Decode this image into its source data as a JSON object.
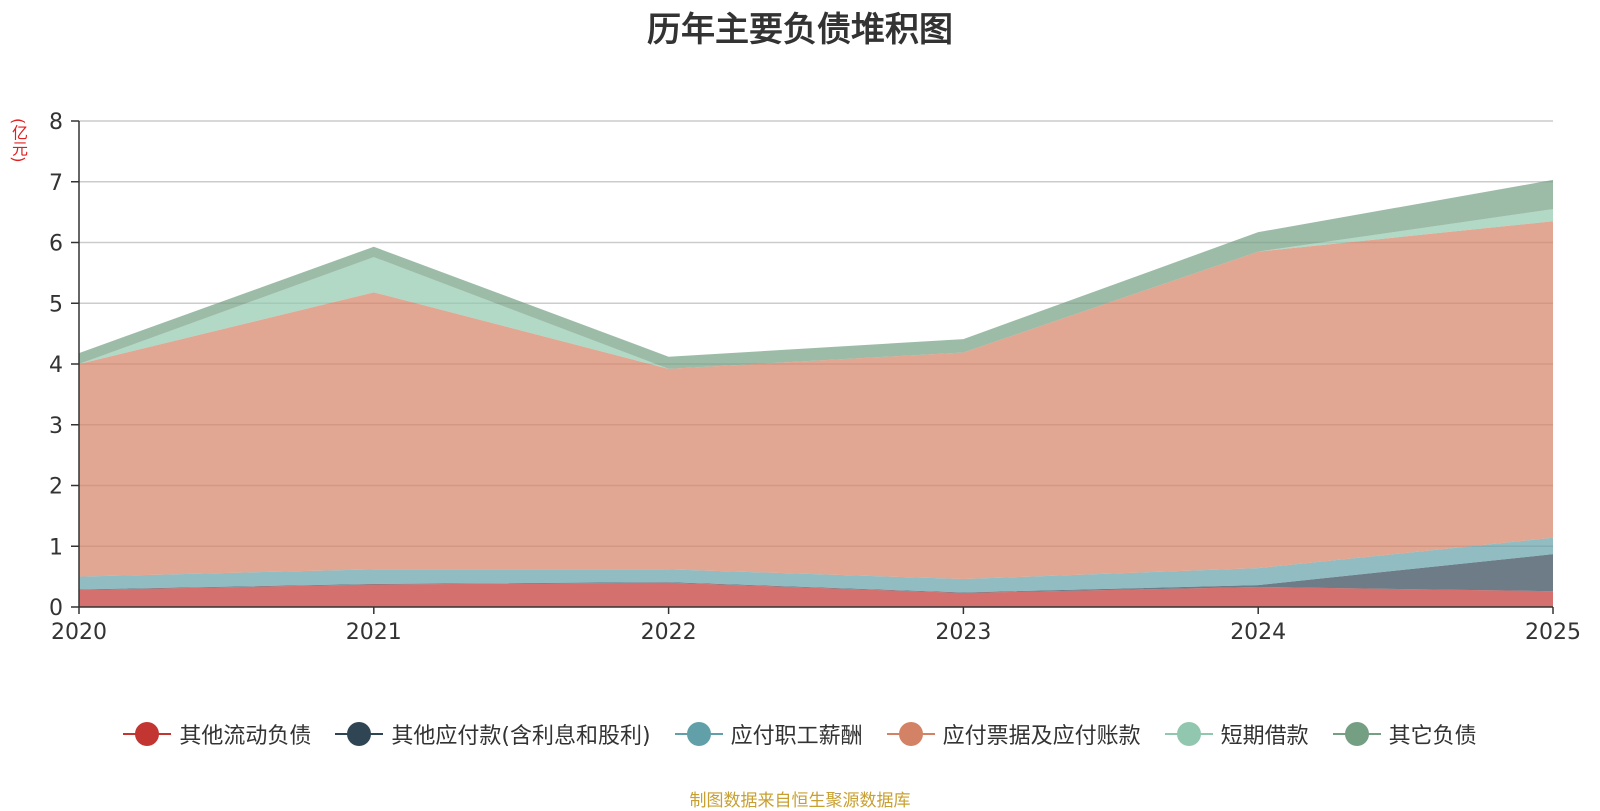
{
  "chart_data": {
    "type": "area",
    "stacked": true,
    "title": "历年主要负债堆积图",
    "ylabel": "(亿元)",
    "xlabel": "",
    "x": [
      "2020",
      "2021",
      "2022",
      "2023",
      "2024",
      "2025"
    ],
    "ylim": [
      0,
      8
    ],
    "yticks": [
      "0",
      "1",
      "2",
      "3",
      "4",
      "5",
      "6",
      "7",
      "8"
    ],
    "grid": true,
    "legend_position": "bottom",
    "series": [
      {
        "name": "其他流动负债",
        "color": "#c23531",
        "values": [
          0.28,
          0.37,
          0.4,
          0.23,
          0.33,
          0.26
        ]
      },
      {
        "name": "其他应付款(含利息和股利)",
        "color": "#2f4554",
        "values": [
          0.01,
          0.01,
          0.01,
          0.01,
          0.03,
          0.61
        ]
      },
      {
        "name": "应付职工薪酬",
        "color": "#61a0a8",
        "values": [
          0.21,
          0.24,
          0.21,
          0.22,
          0.28,
          0.27
        ]
      },
      {
        "name": "应付票据及应付账款",
        "color": "#d48265",
        "values": [
          3.5,
          4.56,
          3.3,
          3.73,
          5.21,
          5.21
        ]
      },
      {
        "name": "短期借款",
        "color": "#91c7ae",
        "values": [
          0.0,
          0.58,
          0.0,
          0.0,
          0.0,
          0.2
        ]
      },
      {
        "name": "其它负债",
        "color": "#749f83",
        "values": [
          0.18,
          0.17,
          0.2,
          0.22,
          0.32,
          0.48
        ]
      }
    ]
  },
  "source_note": "制图数据来自恒生聚源数据库"
}
